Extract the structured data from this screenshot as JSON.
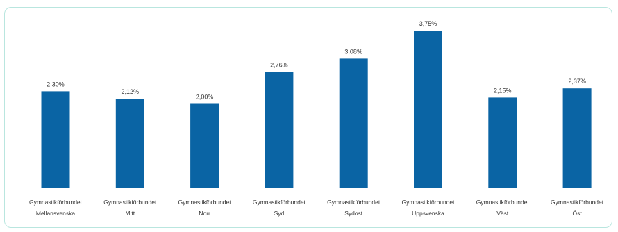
{
  "chart_data": {
    "type": "bar",
    "categories": [
      [
        "Gymnastikförbundet",
        "Mellansvenska"
      ],
      [
        "Gymnastikförbundet",
        "Mitt"
      ],
      [
        "Gymnastikförbundet",
        "Norr"
      ],
      [
        "Gymnastikförbundet",
        "Syd"
      ],
      [
        "Gymnastikförbundet",
        "Sydost"
      ],
      [
        "Gymnastikförbundet",
        "Uppsvenska"
      ],
      [
        "Gymnastikförbundet",
        "Väst"
      ],
      [
        "Gymnastikförbundet",
        "Öst"
      ]
    ],
    "values": [
      2.3,
      2.12,
      2.0,
      2.76,
      3.08,
      3.75,
      2.15,
      2.37
    ],
    "data_labels": [
      "2,30%",
      "2,12%",
      "2,00%",
      "2,76%",
      "3,08%",
      "3,75%",
      "2,15%",
      "2,37%"
    ],
    "bar_color": "#0a64a4",
    "ylim": [
      0,
      3.75
    ],
    "grid": false,
    "legend": "none"
  }
}
